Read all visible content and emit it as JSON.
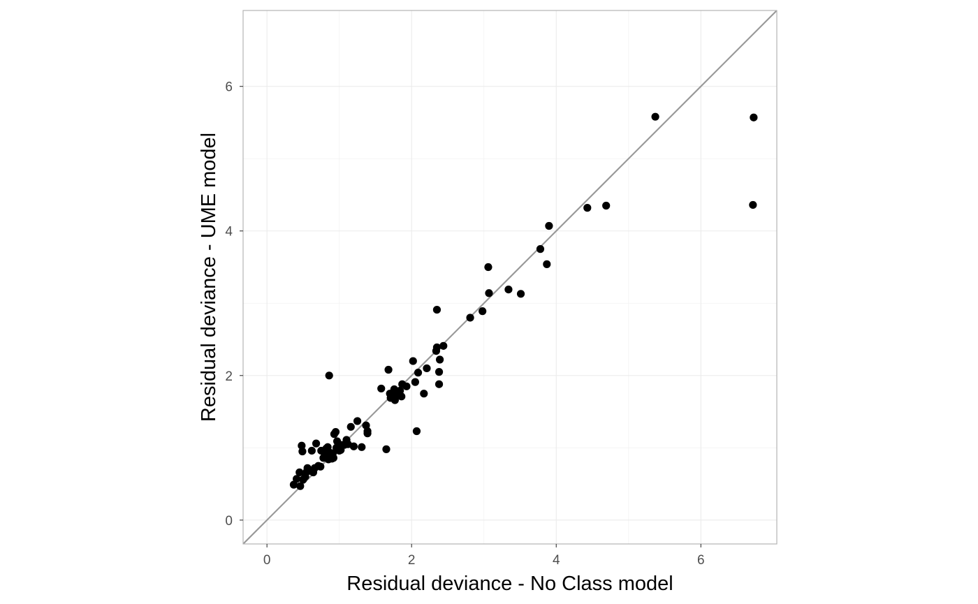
{
  "chart_data": {
    "type": "scatter",
    "title": "",
    "xlabel": "Residual deviance - No Class model",
    "ylabel": "Residual deviance - UME model",
    "xlim": [
      -0.33,
      7.05
    ],
    "ylim": [
      -0.33,
      7.05
    ],
    "x_ticks": [
      0,
      2,
      4,
      6
    ],
    "y_ticks": [
      0,
      2,
      4,
      6
    ],
    "x_tick_labels": [
      "0",
      "2",
      "4",
      "6"
    ],
    "y_tick_labels": [
      "0",
      "2",
      "4",
      "6"
    ],
    "grid": true,
    "reference_line": "y = x",
    "point_color": "#000000",
    "line_color": "#999999",
    "points": [
      [
        0.37,
        0.49
      ],
      [
        0.41,
        0.57
      ],
      [
        0.45,
        0.66
      ],
      [
        0.46,
        0.47
      ],
      [
        0.48,
        1.03
      ],
      [
        0.49,
        0.95
      ],
      [
        0.5,
        0.56
      ],
      [
        0.53,
        0.6
      ],
      [
        0.55,
        0.67
      ],
      [
        0.56,
        0.72
      ],
      [
        0.6,
        0.68
      ],
      [
        0.62,
        0.96
      ],
      [
        0.64,
        0.66
      ],
      [
        0.66,
        0.72
      ],
      [
        0.68,
        1.06
      ],
      [
        0.71,
        0.75
      ],
      [
        0.74,
        0.74
      ],
      [
        0.75,
        0.96
      ],
      [
        0.78,
        0.86
      ],
      [
        0.8,
        0.91
      ],
      [
        0.82,
        0.99
      ],
      [
        0.84,
        1.01
      ],
      [
        0.85,
        0.84
      ],
      [
        0.86,
        2.0
      ],
      [
        0.88,
        0.93
      ],
      [
        0.9,
        0.85
      ],
      [
        0.91,
        0.92
      ],
      [
        0.92,
        0.86
      ],
      [
        0.93,
        1.19
      ],
      [
        0.95,
        1.22
      ],
      [
        0.96,
        1.0
      ],
      [
        0.97,
        1.09
      ],
      [
        0.98,
        1.02
      ],
      [
        1.0,
        0.96
      ],
      [
        1.02,
        0.97
      ],
      [
        1.04,
        1.04
      ],
      [
        1.07,
        1.04
      ],
      [
        1.1,
        1.11
      ],
      [
        1.12,
        1.05
      ],
      [
        1.16,
        1.29
      ],
      [
        1.2,
        1.02
      ],
      [
        1.25,
        1.37
      ],
      [
        1.31,
        1.01
      ],
      [
        1.37,
        1.31
      ],
      [
        1.39,
        1.2
      ],
      [
        1.39,
        1.23
      ],
      [
        1.58,
        1.82
      ],
      [
        1.65,
        0.98
      ],
      [
        1.68,
        2.08
      ],
      [
        1.7,
        1.75
      ],
      [
        1.71,
        1.69
      ],
      [
        1.74,
        1.72
      ],
      [
        1.76,
        1.81
      ],
      [
        1.77,
        1.66
      ],
      [
        1.79,
        1.74
      ],
      [
        1.81,
        1.77
      ],
      [
        1.84,
        1.79
      ],
      [
        1.86,
        1.71
      ],
      [
        1.87,
        1.88
      ],
      [
        1.93,
        1.85
      ],
      [
        2.02,
        2.2
      ],
      [
        2.05,
        1.91
      ],
      [
        2.07,
        1.23
      ],
      [
        2.09,
        2.04
      ],
      [
        2.17,
        1.75
      ],
      [
        2.21,
        2.1
      ],
      [
        2.34,
        2.34
      ],
      [
        2.35,
        2.91
      ],
      [
        2.35,
        2.39
      ],
      [
        2.38,
        2.05
      ],
      [
        2.38,
        1.88
      ],
      [
        2.39,
        2.22
      ],
      [
        2.44,
        2.41
      ],
      [
        2.81,
        2.8
      ],
      [
        2.98,
        2.89
      ],
      [
        3.06,
        3.5
      ],
      [
        3.07,
        3.14
      ],
      [
        3.34,
        3.19
      ],
      [
        3.51,
        3.13
      ],
      [
        3.78,
        3.75
      ],
      [
        3.87,
        3.54
      ],
      [
        3.9,
        4.07
      ],
      [
        4.43,
        4.32
      ],
      [
        4.69,
        4.35
      ],
      [
        5.37,
        5.58
      ],
      [
        6.73,
        5.57
      ],
      [
        6.72,
        4.36
      ]
    ]
  }
}
